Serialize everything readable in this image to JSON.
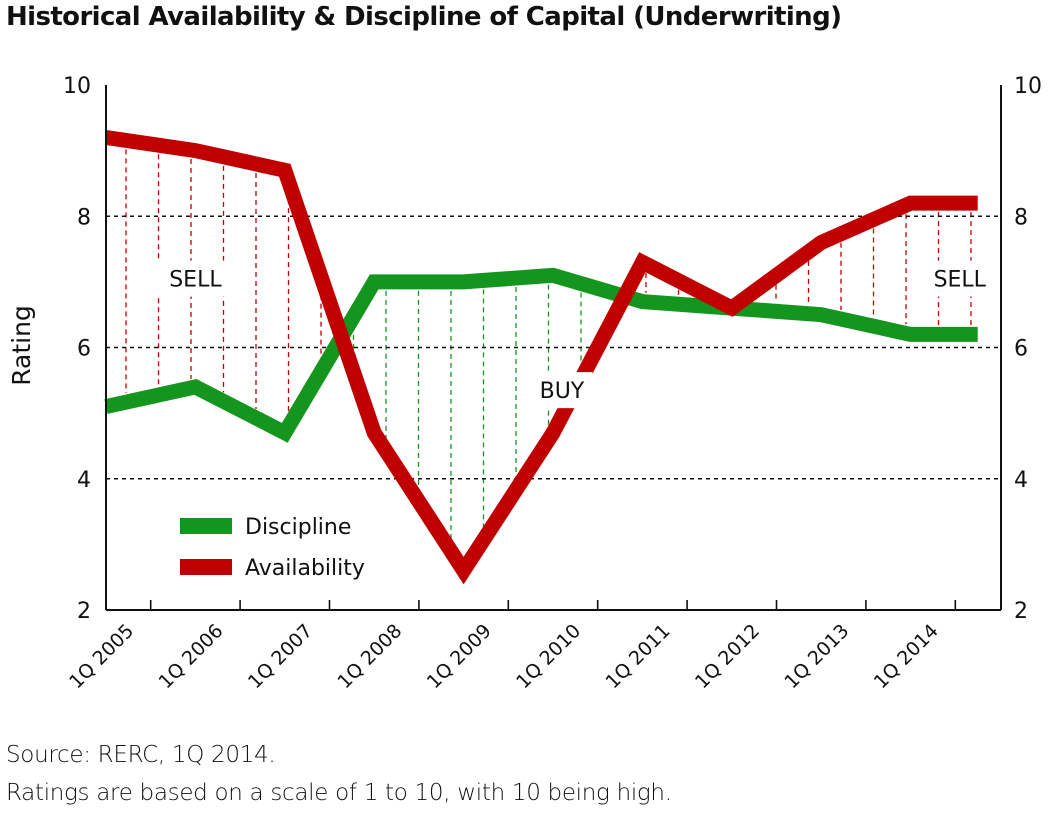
{
  "title": "Historical Availability & Discipline of Capital (Underwriting)",
  "footnotes": {
    "source": "Source: RERC, 1Q 2014.",
    "scale": "Ratings are based on a scale of 1 to 10, with 10 being high."
  },
  "chart_data": {
    "type": "line",
    "title": "Historical Availability & Discipline of Capital (Underwriting)",
    "ylabel": "Rating",
    "xlabel": "",
    "ylim": [
      2,
      10
    ],
    "yticks": [
      2,
      4,
      6,
      8,
      10
    ],
    "y_axis_right": true,
    "grid": "dashed horizontal at 4, 6, 8",
    "xlim": [
      2005.0,
      2014.75
    ],
    "categories": [
      "1Q 2005",
      "1Q 2006",
      "1Q 2007",
      "1Q 2008",
      "1Q 2009",
      "1Q 2010",
      "1Q 2011",
      "1Q 2012",
      "1Q 2013",
      "1Q 2014"
    ],
    "series": [
      {
        "name": "Discipline",
        "color": "#14961e",
        "x": [
          2005.0,
          2006.0,
          2007.0,
          2008.0,
          2009.0,
          2010.0,
          2011.0,
          2012.0,
          2013.0,
          2014.0,
          2014.75
        ],
        "values": [
          5.1,
          5.4,
          4.7,
          7.0,
          7.0,
          7.1,
          6.7,
          6.6,
          6.5,
          6.2,
          6.2
        ]
      },
      {
        "name": "Availability",
        "color": "#c00000",
        "x": [
          2005.0,
          2006.0,
          2007.0,
          2008.0,
          2009.0,
          2010.0,
          2011.0,
          2012.0,
          2013.0,
          2014.0,
          2014.75
        ],
        "values": [
          9.2,
          9.0,
          8.7,
          4.7,
          2.6,
          4.7,
          7.3,
          6.6,
          7.6,
          8.2,
          8.2
        ]
      }
    ],
    "legend": {
      "position": "bottom-left",
      "entries": [
        {
          "label": "Discipline",
          "color": "#14961e"
        },
        {
          "label": "Availability",
          "color": "#c00000"
        }
      ]
    },
    "annotations": [
      {
        "text": "SELL",
        "x": 2006.0,
        "y": 7.05
      },
      {
        "text": "BUY",
        "x": 2010.1,
        "y": 5.35
      },
      {
        "text": "SELL",
        "x": 2014.55,
        "y": 7.05
      }
    ],
    "shading": {
      "sell_color": "#c00000",
      "buy_color": "#14961e",
      "style": "dashed vertical lines between series"
    }
  }
}
